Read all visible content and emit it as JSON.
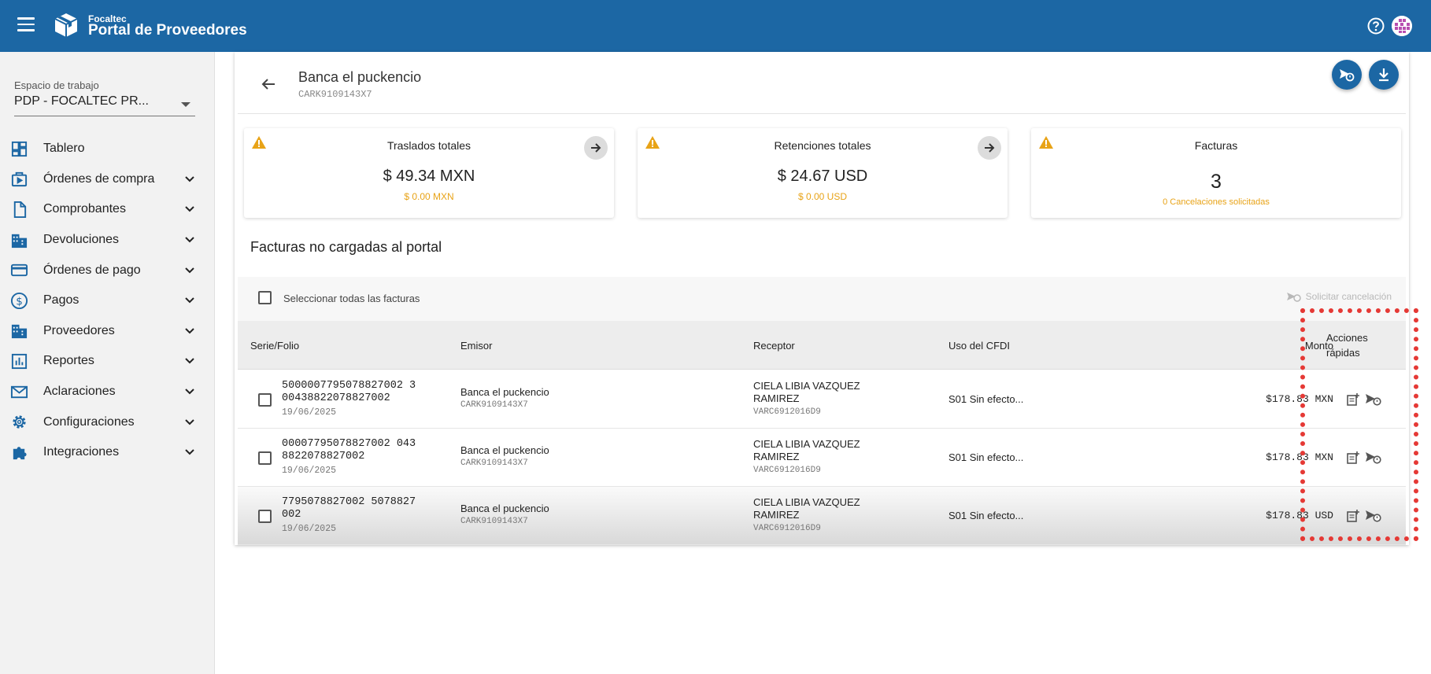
{
  "header": {
    "brand_small": "Focaltec",
    "brand_title": "Portal de Proveedores",
    "icons": {
      "menu": "menu-icon",
      "logo": "box-logo-icon",
      "help": "help-icon",
      "avatar": "avatar-pattern"
    },
    "colors": {
      "primary": "#1c67a4",
      "warning": "#e8a317",
      "highlight": "#e53935"
    }
  },
  "sidebar": {
    "workspace_label": "Espacio de trabajo",
    "workspace_value": "PDP - FOCALTEC PR...",
    "items": [
      {
        "label": "Tablero",
        "icon": "dashboard-icon",
        "expandable": false
      },
      {
        "label": "Órdenes de compra",
        "icon": "purchase-orders-icon",
        "expandable": true
      },
      {
        "label": "Comprobantes",
        "icon": "document-icon",
        "expandable": true
      },
      {
        "label": "Devoluciones",
        "icon": "building-icon",
        "expandable": true
      },
      {
        "label": "Órdenes de pago",
        "icon": "credit-card-icon",
        "expandable": true
      },
      {
        "label": "Pagos",
        "icon": "dollar-icon",
        "expandable": true
      },
      {
        "label": "Proveedores",
        "icon": "building-icon",
        "expandable": true
      },
      {
        "label": "Reportes",
        "icon": "chart-icon",
        "expandable": true
      },
      {
        "label": "Aclaraciones",
        "icon": "mail-icon",
        "expandable": true
      },
      {
        "label": "Configuraciones",
        "icon": "gear-icon",
        "expandable": true
      },
      {
        "label": "Integraciones",
        "icon": "puzzle-icon",
        "expandable": true
      }
    ]
  },
  "main": {
    "entity_name": "Banca el puckencio",
    "entity_rfc": "CARK9109143X7",
    "cards": [
      {
        "title": "Traslados totales",
        "value": "$ 49.34 MXN",
        "sub": "$ 0.00 MXN"
      },
      {
        "title": "Retenciones totales",
        "value": "$ 24.67 USD",
        "sub": "$ 0.00 USD"
      },
      {
        "title": "Facturas",
        "value": "3",
        "sub": "0 Cancelaciones solicitadas"
      }
    ],
    "section_title": "Facturas no cargadas al portal",
    "select_all_label": "Seleccionar todas las facturas",
    "cancel_request_label": "Solicitar cancelación",
    "columns": {
      "serie": "Serie/Folio",
      "emisor": "Emisor",
      "receptor": "Receptor",
      "uso": "Uso del CFDI",
      "monto": "Monto",
      "acciones_1": "Acciones",
      "acciones_2": "rápidas"
    },
    "rows": [
      {
        "folio_1": "5000007795078827002 3",
        "folio_2": "00438822078827002",
        "date": "19/06/2025",
        "emisor": "Banca el puckencio",
        "emisor_rfc": "CARK9109143X7",
        "receptor_1": "CIELA LIBIA VAZQUEZ",
        "receptor_2": "RAMIREZ",
        "receptor_rfc": "VARC6912016D9",
        "uso": "S01 Sin efecto...",
        "monto": "$178.83 MXN"
      },
      {
        "folio_1": "00007795078827002 043",
        "folio_2": "8822078827002",
        "date": "19/06/2025",
        "emisor": "Banca el puckencio",
        "emisor_rfc": "CARK9109143X7",
        "receptor_1": "CIELA LIBIA VAZQUEZ",
        "receptor_2": "RAMIREZ",
        "receptor_rfc": "VARC6912016D9",
        "uso": "S01 Sin efecto...",
        "monto": "$178.83 MXN"
      },
      {
        "folio_1": "7795078827002 5078827",
        "folio_2": "002",
        "date": "19/06/2025",
        "emisor": "Banca el puckencio",
        "emisor_rfc": "CARK9109143X7",
        "receptor_1": "CIELA LIBIA VAZQUEZ",
        "receptor_2": "RAMIREZ",
        "receptor_rfc": "VARC6912016D9",
        "uso": "S01 Sin efecto...",
        "monto": "$178.83 USD"
      }
    ]
  }
}
